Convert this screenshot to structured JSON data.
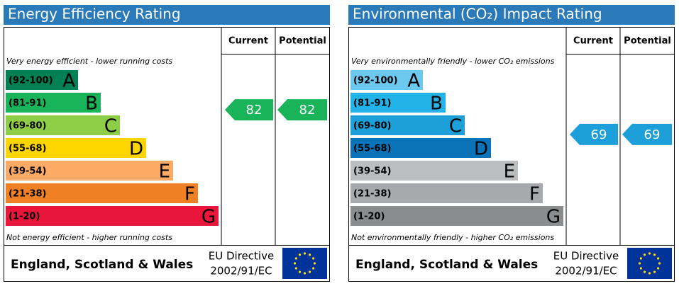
{
  "panels": [
    {
      "title": "Energy Efficiency Rating",
      "headers": [
        "Current",
        "Potential"
      ],
      "top_note": "Very energy efficient - lower running costs",
      "bottom_note": "Not energy efficient - higher running costs",
      "bands": [
        {
          "range": "(92-100)",
          "letter": "A",
          "color": "#008054"
        },
        {
          "range": "(81-91)",
          "letter": "B",
          "color": "#19b459"
        },
        {
          "range": "(69-80)",
          "letter": "C",
          "color": "#8dce46"
        },
        {
          "range": "(55-68)",
          "letter": "D",
          "color": "#ffd500"
        },
        {
          "range": "(39-54)",
          "letter": "E",
          "color": "#fcaa65"
        },
        {
          "range": "(21-38)",
          "letter": "F",
          "color": "#ef8023"
        },
        {
          "range": "(1-20)",
          "letter": "G",
          "color": "#e9153b"
        }
      ],
      "current": 82,
      "potential": 82,
      "footer": {
        "region": "England, Scotland & Wales",
        "directive": [
          "EU Directive",
          "2002/91/EC"
        ]
      }
    },
    {
      "title": "Environmental (CO₂) Impact Rating",
      "headers": [
        "Current",
        "Potential"
      ],
      "top_note": "Very environmentally friendly - lower CO₂ emissions",
      "bottom_note": "Not environmentally friendly - higher CO₂ emissions",
      "bands": [
        {
          "range": "(92-100)",
          "letter": "A",
          "color": "#6dc8f0"
        },
        {
          "range": "(81-91)",
          "letter": "B",
          "color": "#22b3e8"
        },
        {
          "range": "(69-80)",
          "letter": "C",
          "color": "#1d9fd9"
        },
        {
          "range": "(55-68)",
          "letter": "D",
          "color": "#0b74b9"
        },
        {
          "range": "(39-54)",
          "letter": "E",
          "color": "#bbbdbf"
        },
        {
          "range": "(21-38)",
          "letter": "F",
          "color": "#a7a9ac"
        },
        {
          "range": "(1-20)",
          "letter": "G",
          "color": "#8a8c8e"
        }
      ],
      "current": 69,
      "potential": 69,
      "footer": {
        "region": "England, Scotland & Wales",
        "directive": [
          "EU Directive",
          "2002/91/EC"
        ]
      }
    }
  ]
}
